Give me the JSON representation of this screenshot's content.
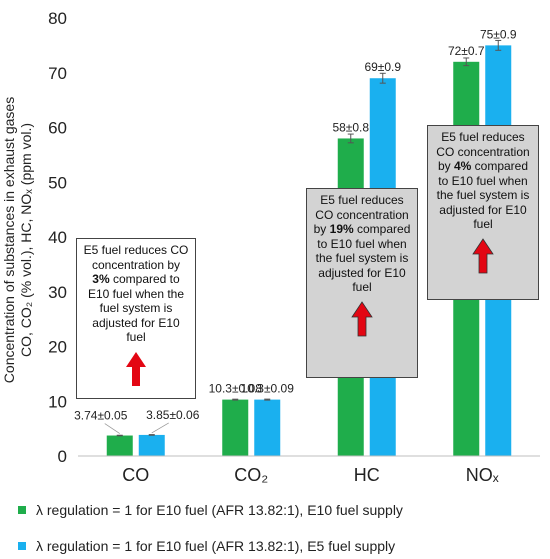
{
  "chart_data": {
    "type": "bar",
    "ylabel_line1": "Concentration of substances in exhaust gases",
    "ylabel_line2": "CO, CO₂ (% vol.), HC, NOₓ (ppm vol.)",
    "ylim": [
      0,
      80
    ],
    "yticks": [
      "0",
      "10",
      "20",
      "30",
      "40",
      "50",
      "60",
      "70",
      "80"
    ],
    "grid": false,
    "categories": [
      "CO",
      "CO₂",
      "HC",
      "NOₓ"
    ],
    "series": [
      {
        "name": "λ regulation = 1 for E10 fuel (AFR 13.82:1), E10 fuel supply",
        "color": "#1fad4b",
        "values": [
          3.74,
          10.3,
          58,
          72
        ],
        "errors": [
          0.05,
          0.08,
          0.8,
          0.7
        ],
        "labels": [
          "3.74±0.05",
          "10.3±0.08",
          "58±0.8",
          "72±0.7"
        ]
      },
      {
        "name": "λ regulation = 1 for E10 fuel (AFR 13.82:1), E5 fuel supply",
        "color": "#1ab0ef",
        "values": [
          3.85,
          10.3,
          69,
          75
        ],
        "errors": [
          0.06,
          0.09,
          0.9,
          0.9
        ],
        "labels": [
          "3.85±0.06",
          "10.3±0.09",
          "69±0.9",
          "75±0.9"
        ]
      }
    ],
    "legend_position": "bottom"
  },
  "annotations": {
    "co": {
      "pre": "E5 fuel reduces CO concentration by ",
      "pct": "3%",
      "post": " compared to E10 fuel when the fuel system is adjusted for E10 fuel"
    },
    "hc": {
      "pre": "E5 fuel reduces CO concentration by ",
      "pct": "19%",
      "post": " compared to E10 fuel when the fuel system is adjusted for E10 fuel"
    },
    "nox": {
      "pre": "E5 fuel reduces CO concentration by ",
      "pct": "4%",
      "post": " compared to E10 fuel when the fuel system is adjusted for E10 fuel"
    }
  },
  "colors": {
    "arrow": "#e30613",
    "axis": "#bfbfbf"
  }
}
